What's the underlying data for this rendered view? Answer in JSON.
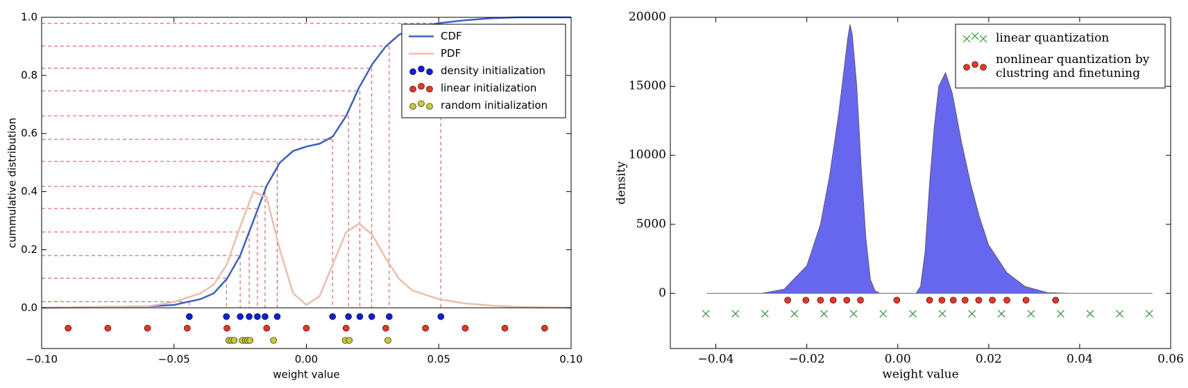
{
  "chart_data": [
    {
      "type": "line",
      "xlabel": "weight value",
      "ylabel": "cummulative distribution",
      "xlim": [
        -0.1,
        0.1
      ],
      "ylim": [
        -0.14,
        1.0
      ],
      "xticks": [
        {
          "value": -0.1,
          "label": "−0.10"
        },
        {
          "value": -0.05,
          "label": "−0.05"
        },
        {
          "value": 0,
          "label": "0.00"
        },
        {
          "value": 0.05,
          "label": "0.05"
        },
        {
          "value": 0.1,
          "label": "0.10"
        }
      ],
      "yticks": [
        {
          "value": 0,
          "label": "0.0"
        },
        0.2,
        0.4,
        0.6,
        0.8,
        {
          "value": 1,
          "label": "1.0"
        }
      ],
      "legend": "upper right",
      "x": [
        -0.1,
        -0.06,
        -0.05,
        -0.04,
        -0.035,
        -0.03,
        -0.025,
        -0.02,
        -0.015,
        -0.01,
        -0.005,
        0,
        0.005,
        0.01,
        0.015,
        0.02,
        0.025,
        0.03,
        0.035,
        0.04,
        0.05,
        0.06,
        0.07,
        0.08,
        0.1
      ],
      "series": [
        {
          "name": "CDF",
          "type": "line",
          "color": "#3a5fcd",
          "values": [
            0,
            0.005,
            0.01,
            0.03,
            0.05,
            0.1,
            0.18,
            0.3,
            0.42,
            0.5,
            0.54,
            0.555,
            0.565,
            0.59,
            0.66,
            0.76,
            0.84,
            0.9,
            0.94,
            0.96,
            0.98,
            0.99,
            0.997,
            1.0,
            1.0
          ]
        },
        {
          "name": "PDF",
          "type": "line",
          "color": "#f0bcaa",
          "values": [
            0,
            0.005,
            0.02,
            0.05,
            0.08,
            0.15,
            0.28,
            0.4,
            0.38,
            0.2,
            0.05,
            0.01,
            0.04,
            0.15,
            0.26,
            0.29,
            0.25,
            0.17,
            0.1,
            0.06,
            0.03,
            0.015,
            0.008,
            0.003,
            0
          ]
        },
        {
          "name": "density initialization",
          "type": "scatter",
          "marker": "o",
          "color": "#0a1ee0",
          "x": [
            -0.0442,
            -0.0302,
            -0.025,
            -0.0216,
            -0.0185,
            -0.0156,
            -0.011,
            0.0099,
            0.0159,
            0.0202,
            0.0247,
            0.0313,
            0.0508
          ],
          "values": [
            -0.03,
            -0.03,
            -0.03,
            -0.03,
            -0.03,
            -0.03,
            -0.03,
            -0.03,
            -0.03,
            -0.03,
            -0.03,
            -0.03,
            -0.03
          ]
        },
        {
          "name": "linear initialization",
          "type": "scatter",
          "marker": "o",
          "color": "#ee3322",
          "x": [
            -0.09,
            -0.075,
            -0.06,
            -0.045,
            -0.03,
            -0.015,
            0,
            0.015,
            0.03,
            0.045,
            0.06,
            0.075,
            0.09
          ],
          "values": [
            -0.07,
            -0.07,
            -0.07,
            -0.07,
            -0.07,
            -0.07,
            -0.07,
            -0.07,
            -0.07,
            -0.07,
            -0.07,
            -0.07,
            -0.07
          ]
        },
        {
          "name": "random initialization",
          "type": "scatter",
          "marker": "o",
          "color": "#c8c835",
          "x": [
            -0.0293,
            -0.0282,
            -0.0273,
            -0.0242,
            -0.023,
            -0.0222,
            -0.0213,
            -0.0124,
            0.0147,
            0.0162,
            0.0308
          ],
          "values": [
            -0.112,
            -0.112,
            -0.112,
            -0.112,
            -0.112,
            -0.112,
            -0.112,
            -0.112,
            -0.112,
            -0.112,
            -0.112
          ]
        }
      ],
      "guide_levels": [
        0.021,
        0.102,
        0.18,
        0.261,
        0.342,
        0.418,
        0.504,
        0.58,
        0.661,
        0.747,
        0.825,
        0.901,
        0.979
      ],
      "guide_color": "#ee4444"
    },
    {
      "type": "area",
      "xlabel": "weight value",
      "ylabel": "density",
      "xlim": [
        -0.05,
        0.06
      ],
      "ylim": [
        -4000,
        20000
      ],
      "xticks": [
        {
          "value": -0.04,
          "label": "−0.04"
        },
        {
          "value": -0.02,
          "label": "−0.02"
        },
        {
          "value": 0,
          "label": "0.00"
        },
        {
          "value": 0.02,
          "label": "0.02"
        },
        {
          "value": 0.04,
          "label": "0.04"
        },
        {
          "value": 0.06,
          "label": "0.06"
        }
      ],
      "yticks": [
        0,
        5000,
        10000,
        15000,
        20000
      ],
      "legend": "upper right",
      "series": [
        {
          "type": "area",
          "color": "#6666ee",
          "x": [
            -0.042,
            -0.03,
            -0.025,
            -0.02,
            -0.017,
            -0.015,
            -0.013,
            -0.011,
            -0.0105,
            -0.01,
            -0.009,
            -0.008,
            -0.007,
            -0.006,
            -0.005,
            -0.004,
            0.004,
            0.005,
            0.006,
            0.007,
            0.008,
            0.009,
            0.0105,
            0.012,
            0.014,
            0.016,
            0.018,
            0.02,
            0.024,
            0.028,
            0.033,
            0.038,
            0.056
          ],
          "values": [
            0,
            0,
            300,
            2000,
            5000,
            8500,
            13000,
            18500,
            19500,
            18800,
            15000,
            9000,
            4000,
            1000,
            200,
            0,
            0,
            500,
            3000,
            8000,
            12000,
            15000,
            16000,
            14500,
            11000,
            8000,
            5500,
            3500,
            1500,
            500,
            50,
            0,
            0
          ]
        },
        {
          "name": "linear quantization",
          "type": "scatter",
          "marker": "x",
          "color": "#2a9a2a",
          "x": [
            -0.0422,
            -0.0357,
            -0.0292,
            -0.0227,
            -0.0162,
            -0.0097,
            -0.0032,
            0.0033,
            0.0098,
            0.0163,
            0.0228,
            0.0293,
            0.0358,
            0.0423,
            0.0488,
            0.0553
          ],
          "values": [
            -1480,
            -1480,
            -1480,
            -1480,
            -1480,
            -1480,
            -1480,
            -1480,
            -1480,
            -1480,
            -1480,
            -1480,
            -1480,
            -1480,
            -1480,
            -1480
          ]
        },
        {
          "name": "nonlinear quantization by clustring and finetuning",
          "type": "scatter",
          "marker": "o",
          "color": "#ee3322",
          "x": [
            -0.0242,
            -0.0202,
            -0.017,
            -0.0142,
            -0.0112,
            -0.0082,
            -0.0002,
            0.007,
            0.0097,
            0.0122,
            0.0148,
            0.0178,
            0.0208,
            0.024,
            0.0282,
            0.0347
          ],
          "values": [
            -500,
            -500,
            -500,
            -500,
            -500,
            -500,
            -500,
            -500,
            -500,
            -500,
            -500,
            -500,
            -500,
            -500,
            -500,
            -500
          ]
        }
      ]
    }
  ]
}
